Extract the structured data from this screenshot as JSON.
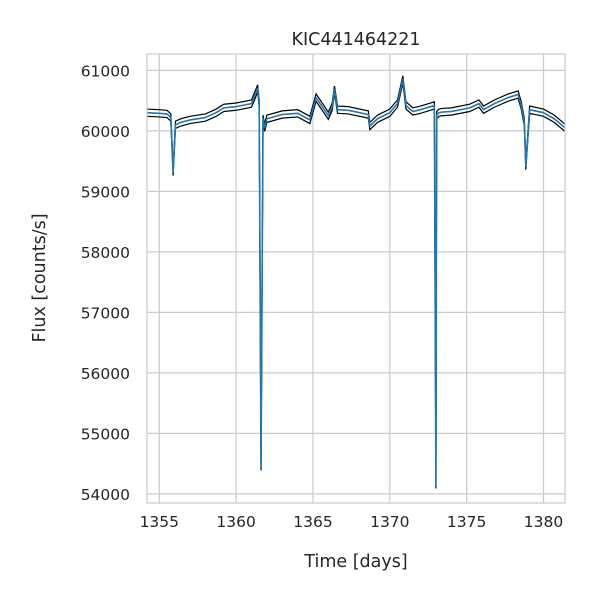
{
  "chart_data": {
    "type": "line",
    "title": "KIC441464221",
    "xlabel": "Time [days]",
    "ylabel": "Flux [counts/s]",
    "xlim": [
      1354.2,
      1381.4
    ],
    "ylim": [
      53850,
      61270
    ],
    "xticks": [
      1355,
      1360,
      1365,
      1370,
      1375,
      1380
    ],
    "yticks": [
      54000,
      55000,
      56000,
      57000,
      58000,
      59000,
      60000,
      61000
    ],
    "xtick_labels": [
      "1355",
      "1360",
      "1365",
      "1370",
      "1375",
      "1380"
    ],
    "ytick_labels": [
      "54000",
      "55000",
      "56000",
      "57000",
      "58000",
      "59000",
      "60000",
      "61000"
    ],
    "grid": true,
    "series": [
      {
        "color": "#1f77b4",
        "error_band_color": "#000000",
        "x": [
          1354.2,
          1355.0,
          1355.5,
          1355.75,
          1355.9,
          1356.05,
          1356.4,
          1357.0,
          1358.0,
          1358.7,
          1359.2,
          1360.0,
          1361.0,
          1361.4,
          1361.5,
          1361.62,
          1361.75,
          1361.85,
          1362.0,
          1363.0,
          1364.0,
          1364.8,
          1365.2,
          1366.0,
          1366.25,
          1366.4,
          1366.6,
          1367.3,
          1368.6,
          1368.7,
          1369.2,
          1370.0,
          1370.5,
          1370.85,
          1371.05,
          1371.5,
          1372.0,
          1372.9,
          1373.0,
          1373.05,
          1373.2,
          1373.4,
          1374.0,
          1375.2,
          1375.8,
          1376.1,
          1376.8,
          1377.7,
          1378.35,
          1378.55,
          1378.75,
          1378.85,
          1379.1,
          1380.0,
          1380.7,
          1381.4
        ],
        "y": [
          60300,
          60290,
          60280,
          60220,
          59320,
          60100,
          60140,
          60180,
          60220,
          60300,
          60380,
          60400,
          60450,
          60700,
          60450,
          54450,
          60200,
          60050,
          60200,
          60270,
          60290,
          60180,
          60550,
          60250,
          60400,
          60680,
          60350,
          60340,
          60270,
          60080,
          60200,
          60300,
          60450,
          60850,
          60420,
          60320,
          60350,
          60420,
          54150,
          60260,
          60300,
          60310,
          60320,
          60380,
          60450,
          60350,
          60450,
          60550,
          60600,
          60420,
          60150,
          59420,
          60350,
          60300,
          60200,
          60050
        ],
        "error": 60
      }
    ]
  }
}
